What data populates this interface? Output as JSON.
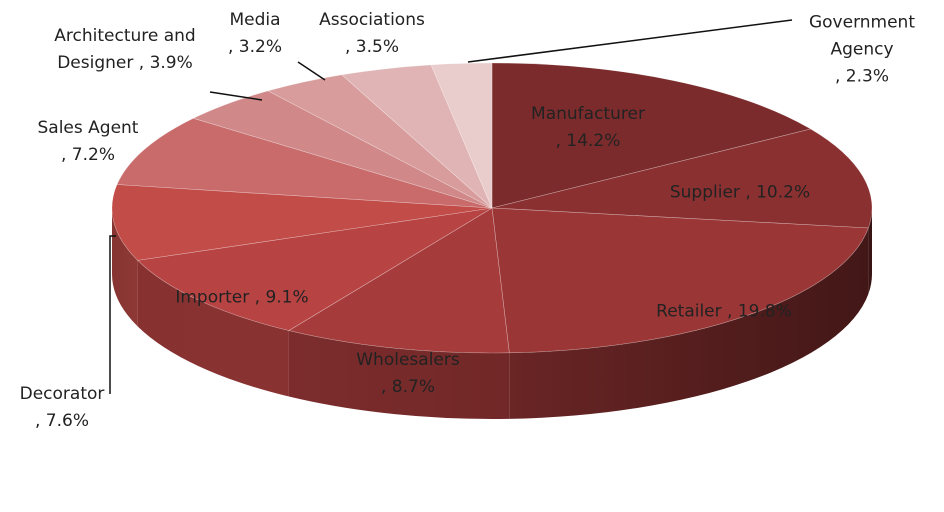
{
  "chart_data": {
    "type": "pie3d",
    "categories": [
      "Manufacturer",
      "Supplier",
      "Retailer",
      "Wholesalers",
      "Importer",
      "Decorator",
      "Sales Agent",
      "Architecture and Designer",
      "Media",
      "Associations",
      "Government Agency"
    ],
    "values": [
      14.2,
      10.2,
      19.8,
      8.7,
      9.1,
      7.6,
      7.2,
      3.9,
      3.2,
      3.5,
      2.3
    ],
    "value_labels": [
      ", 14.2%",
      ", 10.2%",
      ", 19.8%",
      ", 8.7%",
      ", 9.1%",
      ", 7.6%",
      ", 7.2%",
      ", 3.9%",
      ", 3.2%",
      ", 3.5%",
      ", 2.3%"
    ],
    "colors": [
      "#7b2b2b",
      "#8a3030",
      "#9b3636",
      "#a63b3b",
      "#b84343",
      "#c24c48",
      "#c96b6b",
      "#d08888",
      "#d89c9c",
      "#e0b4b4",
      "#e9cccc"
    ]
  }
}
